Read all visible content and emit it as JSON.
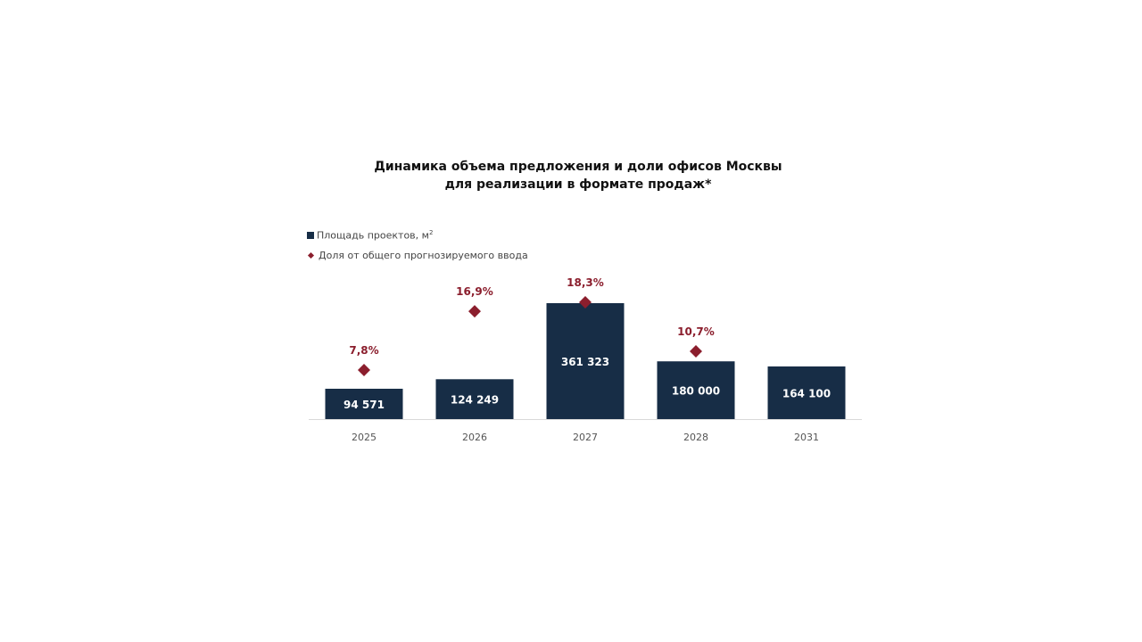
{
  "chart_data": {
    "type": "bar",
    "title_lines": [
      "Динамика объема предложения и доли офисов Москвы",
      "для реализации в формате продаж*"
    ],
    "categories": [
      "2025",
      "2026",
      "2027",
      "2028",
      "2031"
    ],
    "series": [
      {
        "name": "Площадь проектов, м²",
        "type": "bar",
        "values": [
          94571,
          124249,
          361323,
          180000,
          164100
        ],
        "labels": [
          "94 571",
          "124 249",
          "361 323",
          "180 000",
          "164 100"
        ],
        "color": "#172d46"
      },
      {
        "name": "Доля от общего прогнозируемого ввода",
        "type": "scatter",
        "marker": "diamond",
        "values": [
          7.8,
          16.9,
          18.3,
          10.7,
          null
        ],
        "labels": [
          "7,8%",
          "16,9%",
          "18,3%",
          "10,7%",
          null
        ],
        "color": "#8b1e2d"
      }
    ],
    "legend": {
      "placement": "top-left",
      "bar_label": "Площадь проектов, м",
      "bar_label_sup": "2",
      "share_label": "Доля от общего прогнозируемого ввода"
    },
    "grid": false,
    "bar_ylim": [
      0,
      361323
    ],
    "share_ylim": [
      0,
      18.3
    ],
    "colors": {
      "bar": "#172d46",
      "marker": "#8b1e2d",
      "axis": "#d9d9d9",
      "tick_label": "#555555"
    }
  }
}
